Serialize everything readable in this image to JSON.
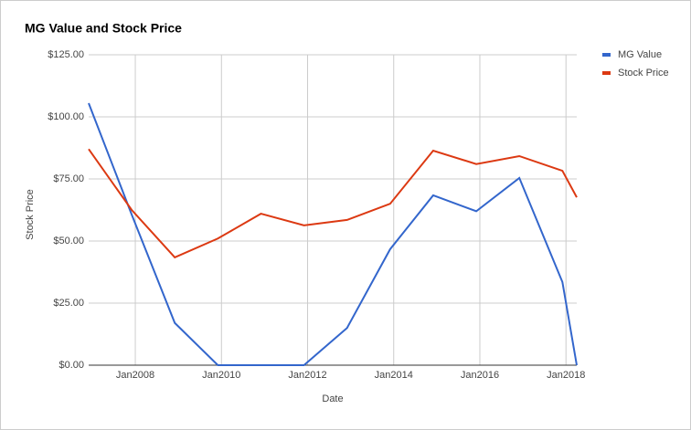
{
  "chart_data": {
    "type": "line",
    "title": "MG Value and Stock Price",
    "x_label": "Date",
    "y_label": "Stock Price",
    "x": [
      "2006-12",
      "2007-12",
      "2008-12",
      "2009-12",
      "2010-12",
      "2011-12",
      "2012-12",
      "2013-12",
      "2014-12",
      "2015-12",
      "2016-12",
      "2017-12",
      "2018-04"
    ],
    "series": [
      {
        "name": "MG Value",
        "color": "#3366cc",
        "values": [
          105.5,
          60.6,
          17,
          0,
          0,
          0,
          15,
          46.7,
          68.4,
          62,
          75.4,
          33.5,
          0
        ]
      },
      {
        "name": "Stock Price",
        "color": "#dc3912",
        "values": [
          87,
          62.5,
          43.4,
          51,
          61,
          56.3,
          58.5,
          65,
          86.4,
          81,
          84.2,
          78.3,
          67.6
        ]
      }
    ],
    "xlim": [
      "2006-12",
      "2018-04"
    ],
    "xticks": [
      {
        "value": "2008-01",
        "label": "Jan2008"
      },
      {
        "value": "2010-01",
        "label": "Jan2010"
      },
      {
        "value": "2012-01",
        "label": "Jan2012"
      },
      {
        "value": "2014-01",
        "label": "Jan2014"
      },
      {
        "value": "2016-01",
        "label": "Jan2016"
      },
      {
        "value": "2018-01",
        "label": "Jan2018"
      }
    ],
    "ylim": [
      0,
      125
    ],
    "yticks": [
      {
        "value": 0,
        "label": "$0.00"
      },
      {
        "value": 25,
        "label": "$25.00"
      },
      {
        "value": 50,
        "label": "$50.00"
      },
      {
        "value": 75,
        "label": "$75.00"
      },
      {
        "value": 100,
        "label": "$100.00"
      },
      {
        "value": 125,
        "label": "$125.00"
      }
    ],
    "grid": true,
    "legend": "right"
  }
}
